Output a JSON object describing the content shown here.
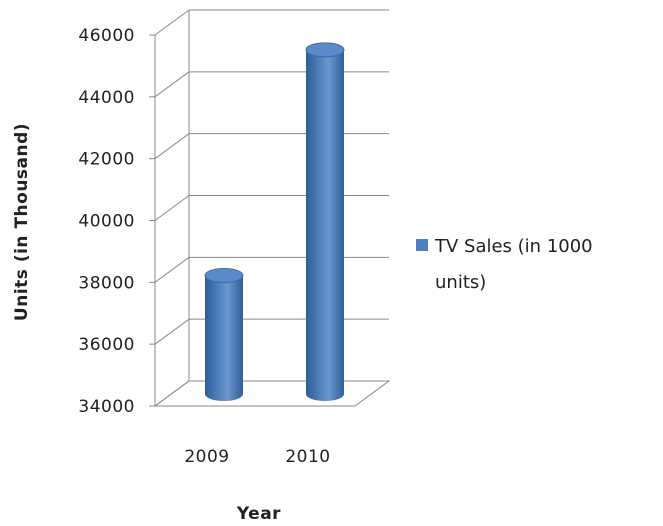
{
  "chart_data": {
    "type": "bar",
    "style": "3d-cylinder",
    "categories": [
      "2009",
      "2010"
    ],
    "series": [
      {
        "name": "TV Sales (in 1000 units)",
        "values": [
          37800,
          45100
        ],
        "color": "#4F81BD"
      }
    ],
    "xlabel": "Year",
    "ylabel": "Units (in Thousand)",
    "ylim": [
      34000,
      46000
    ],
    "yticks": [
      34000,
      36000,
      38000,
      40000,
      42000,
      44000,
      46000
    ],
    "grid": true,
    "legend": {
      "position": "right",
      "lines": [
        "TV Sales (in 1000",
        "units)"
      ]
    }
  }
}
